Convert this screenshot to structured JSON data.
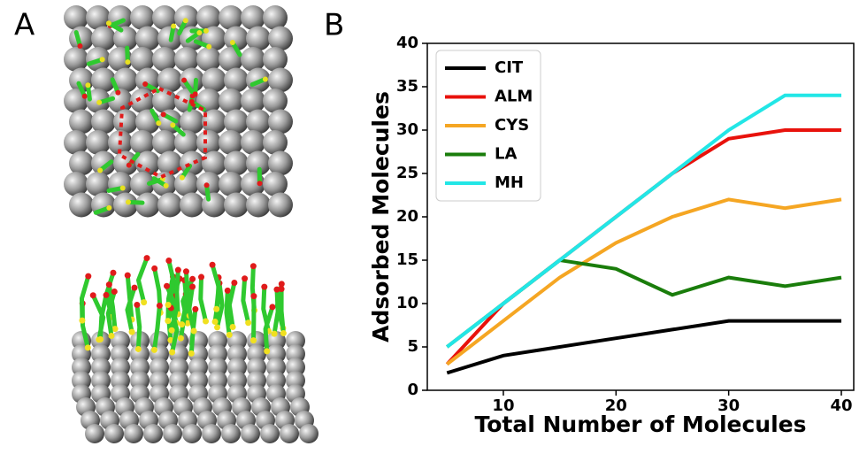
{
  "panel_labels": [
    "A",
    "B"
  ],
  "chart_data": {
    "type": "line",
    "x_label": "Total Number of Molecules",
    "y_label": "Adsorbed Molecules",
    "x": [
      5,
      10,
      15,
      20,
      25,
      30,
      35,
      40
    ],
    "series": [
      {
        "name": "CIT",
        "color": "#000000",
        "values": [
          2,
          4,
          5,
          6,
          7,
          8,
          8,
          8
        ]
      },
      {
        "name": "ALM",
        "color": "#e8120c",
        "values": [
          3,
          10,
          15,
          20,
          25,
          29,
          30,
          30
        ]
      },
      {
        "name": "CYS",
        "color": "#f5a623",
        "values": [
          3,
          8,
          13,
          17,
          20,
          22,
          21,
          22
        ]
      },
      {
        "name": "LA",
        "color": "#1a7d0b",
        "values": [
          5,
          10,
          15,
          14,
          11,
          13,
          12,
          13
        ]
      },
      {
        "name": "MH",
        "color": "#22e6e6",
        "values": [
          5,
          10,
          15,
          20,
          25,
          30,
          34,
          34
        ]
      }
    ],
    "xlim": [
      3.25,
      41.1
    ],
    "ylim": [
      0,
      40
    ],
    "xticks": [
      10,
      20,
      30,
      40
    ],
    "yticks": [
      0,
      5,
      10,
      15,
      20,
      25,
      30,
      35,
      40
    ],
    "legend": "upper-left"
  }
}
